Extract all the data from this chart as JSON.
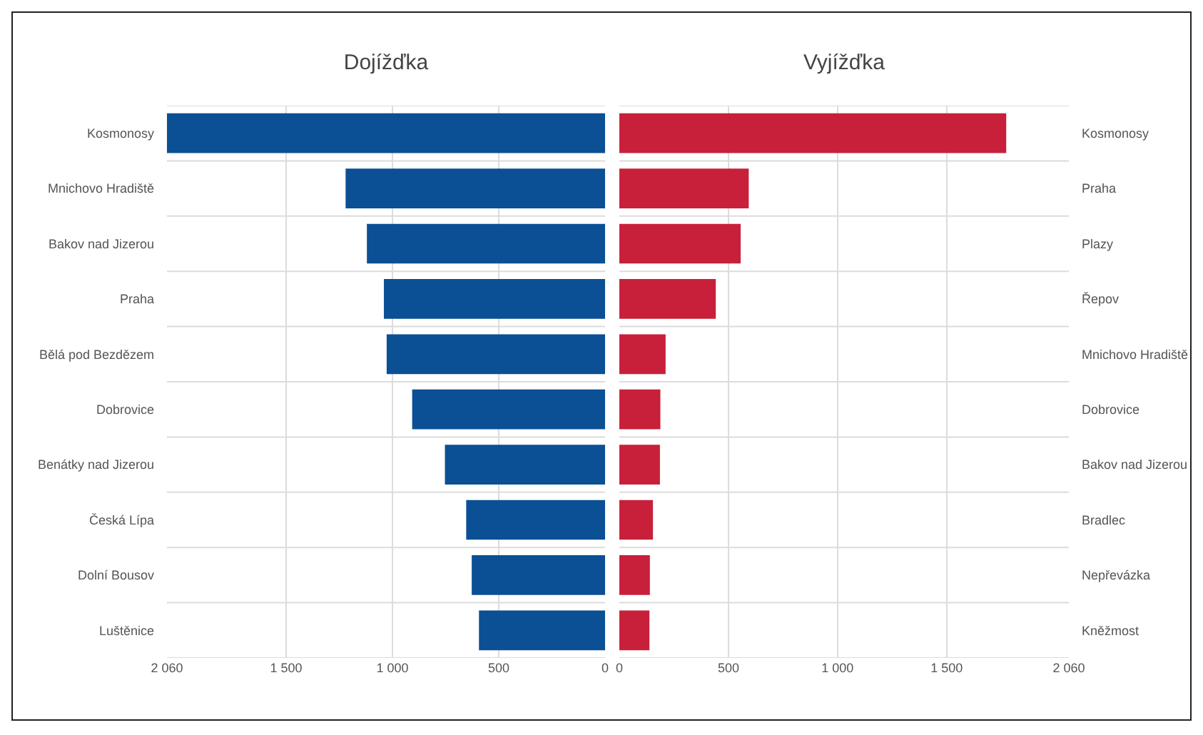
{
  "chart_data": [
    {
      "type": "bar",
      "orientation": "horizontal",
      "title": "Dojížďka",
      "categories": [
        "Kosmonosy",
        "Mnichovo Hradiště",
        "Bakov nad Jizerou",
        "Praha",
        "Bělá pod Bezdězem",
        "Dobrovice",
        "Benátky nad Jizerou",
        "Česká Lípa",
        "Dolní Bousov",
        "Luštěnice"
      ],
      "values": [
        2060,
        1220,
        1120,
        1040,
        1027,
        907,
        753,
        653,
        627,
        593
      ],
      "color": "#0b4f94",
      "xlim": [
        2060,
        0
      ],
      "xticks": [
        {
          "value": 2060,
          "label": "2 060"
        },
        {
          "value": 1500,
          "label": "1 500"
        },
        {
          "value": 1000,
          "label": "1 000"
        },
        {
          "value": 500,
          "label": "500"
        },
        {
          "value": 0,
          "label": "0"
        }
      ],
      "grid": true
    },
    {
      "type": "bar",
      "orientation": "horizontal",
      "title": "Vyjížďka",
      "categories": [
        "Kosmonosy",
        "Praha",
        "Plazy",
        "Řepov",
        "Mnichovo Hradiště",
        "Dobrovice",
        "Bakov nad Jizerou",
        "Bradlec",
        "Nepřevázka",
        "Kněžmost"
      ],
      "values": [
        1773,
        593,
        556,
        442,
        212,
        188,
        186,
        154,
        140,
        138
      ],
      "color": "#c8203a",
      "xlim": [
        0,
        2060
      ],
      "xticks": [
        {
          "value": 0,
          "label": "0"
        },
        {
          "value": 500,
          "label": "500"
        },
        {
          "value": 1000,
          "label": "1 000"
        },
        {
          "value": 1500,
          "label": "1 500"
        },
        {
          "value": 2060,
          "label": "2 060"
        }
      ],
      "grid": true
    }
  ]
}
